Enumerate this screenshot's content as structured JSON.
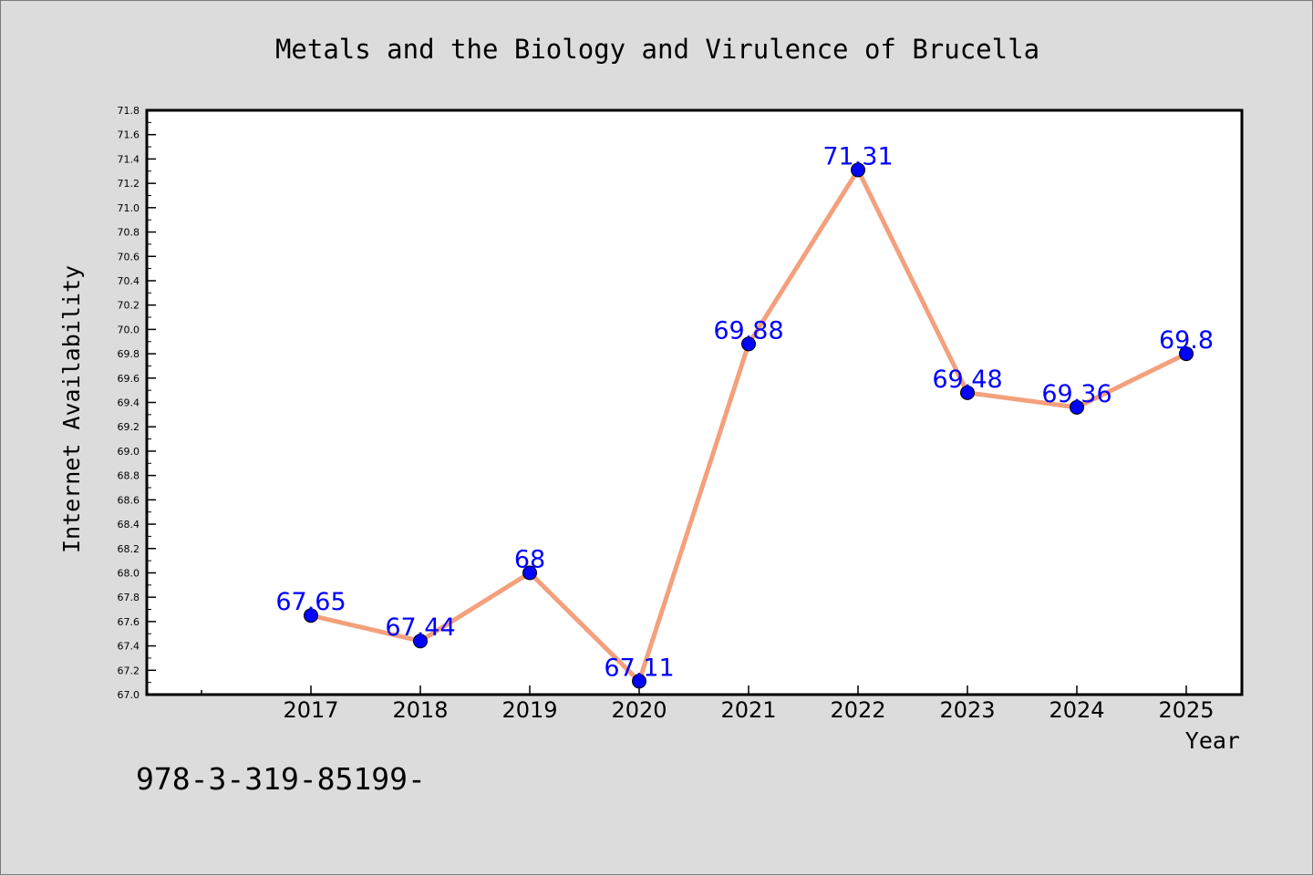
{
  "chart_data": {
    "type": "line",
    "title": "Metals and the Biology and Virulence of Brucella",
    "xlabel": "Year",
    "ylabel": "Internet Availability",
    "categories": [
      "2017",
      "2018",
      "2019",
      "2020",
      "2021",
      "2022",
      "2023",
      "2024",
      "2025"
    ],
    "series": [
      {
        "values": [
          67.65,
          67.44,
          68.0,
          67.11,
          69.88,
          71.31,
          69.48,
          69.36,
          69.8
        ],
        "labels": [
          "67.65",
          "67.44",
          "68",
          "67.11",
          "69.88",
          "71.31",
          "69.48",
          "69.36",
          "69.8"
        ]
      }
    ],
    "ylim": [
      67.0,
      71.8
    ],
    "ytick_step": 0.2,
    "yticks": [
      "67.0",
      "67.2",
      "67.4",
      "67.6",
      "67.8",
      "68.0",
      "68.2",
      "68.4",
      "68.6",
      "68.8",
      "69.0",
      "69.2",
      "69.4",
      "69.6",
      "69.8",
      "70.0",
      "70.2",
      "70.4",
      "70.6",
      "70.8",
      "71.0",
      "71.2",
      "71.4",
      "71.6",
      "71.8"
    ],
    "grid": false,
    "colors": {
      "line": "#f4a07c",
      "marker": "#0000ff",
      "data_label": "#0000ff",
      "background": "#dcdcdc",
      "plot_background": "#ffffff"
    }
  },
  "footer_text": "978-3-319-85199-"
}
